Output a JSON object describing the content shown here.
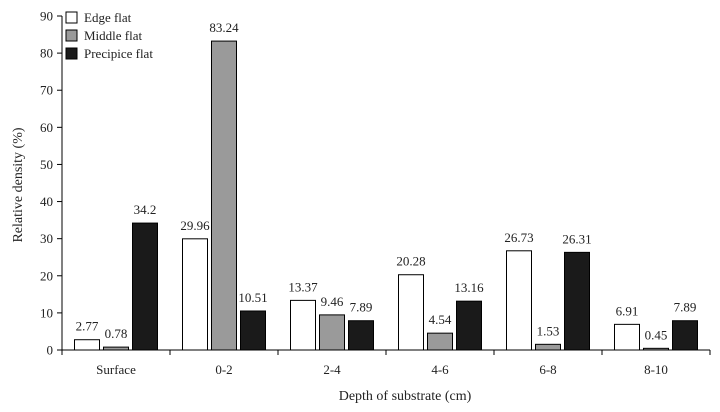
{
  "chart_data": {
    "type": "bar",
    "xlabel": "Depth of substrate (cm)",
    "ylabel": "Relative density (%)",
    "ylim": [
      0,
      90
    ],
    "yticks": [
      0,
      10,
      20,
      30,
      40,
      50,
      60,
      70,
      80,
      90
    ],
    "categories": [
      "Surface",
      "0-2",
      "2-4",
      "4-6",
      "6-8",
      "8-10"
    ],
    "series": [
      {
        "name": "Edge flat",
        "color": "#ffffff",
        "values": [
          2.77,
          29.96,
          13.37,
          20.28,
          26.73,
          6.91
        ],
        "labels": [
          "2.77",
          "29.96",
          "13.37",
          "20.28",
          "26.73",
          "6.91"
        ]
      },
      {
        "name": "Middle flat",
        "color": "#9a9a9a",
        "values": [
          0.78,
          83.24,
          9.46,
          4.54,
          1.53,
          0.45
        ],
        "labels": [
          "0.78",
          "83.24",
          "9.46",
          "4.54",
          "1.53",
          "0.45"
        ]
      },
      {
        "name": "Precipice flat",
        "color": "#1a1a1a",
        "values": [
          34.2,
          10.51,
          7.89,
          13.16,
          26.31,
          7.89
        ],
        "labels": [
          "34.2",
          "10.51",
          "7.89",
          "13.16",
          "26.31",
          "7.89"
        ]
      }
    ],
    "legend": "top-left",
    "grid": false
  }
}
